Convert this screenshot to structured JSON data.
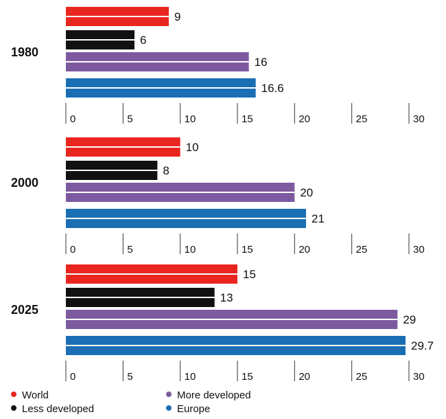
{
  "chart_data": {
    "type": "bar",
    "orientation": "horizontal",
    "title": "",
    "xlabel": "",
    "ylabel": "",
    "xlim": [
      0,
      30
    ],
    "ticks": [
      0,
      5,
      10,
      15,
      20,
      25,
      30
    ],
    "grid": false,
    "legend_position": "bottom",
    "series": [
      {
        "name": "World",
        "color": "#e8261f"
      },
      {
        "name": "Less developed",
        "color": "#111111"
      },
      {
        "name": "More developed",
        "color": "#7d5aa0"
      },
      {
        "name": "Europe",
        "color": "#1a6fb4"
      }
    ],
    "groups": [
      {
        "label": "1980",
        "values": [
          9,
          6,
          16,
          16.6
        ],
        "value_labels": [
          "9",
          "6",
          "16",
          "16.6"
        ]
      },
      {
        "label": "2000",
        "values": [
          10,
          8,
          20,
          21
        ],
        "value_labels": [
          "10",
          "8",
          "20",
          "21"
        ]
      },
      {
        "label": "2025",
        "values": [
          15,
          13,
          29,
          29.7
        ],
        "value_labels": [
          "15",
          "13",
          "29",
          "29.7"
        ]
      }
    ]
  }
}
